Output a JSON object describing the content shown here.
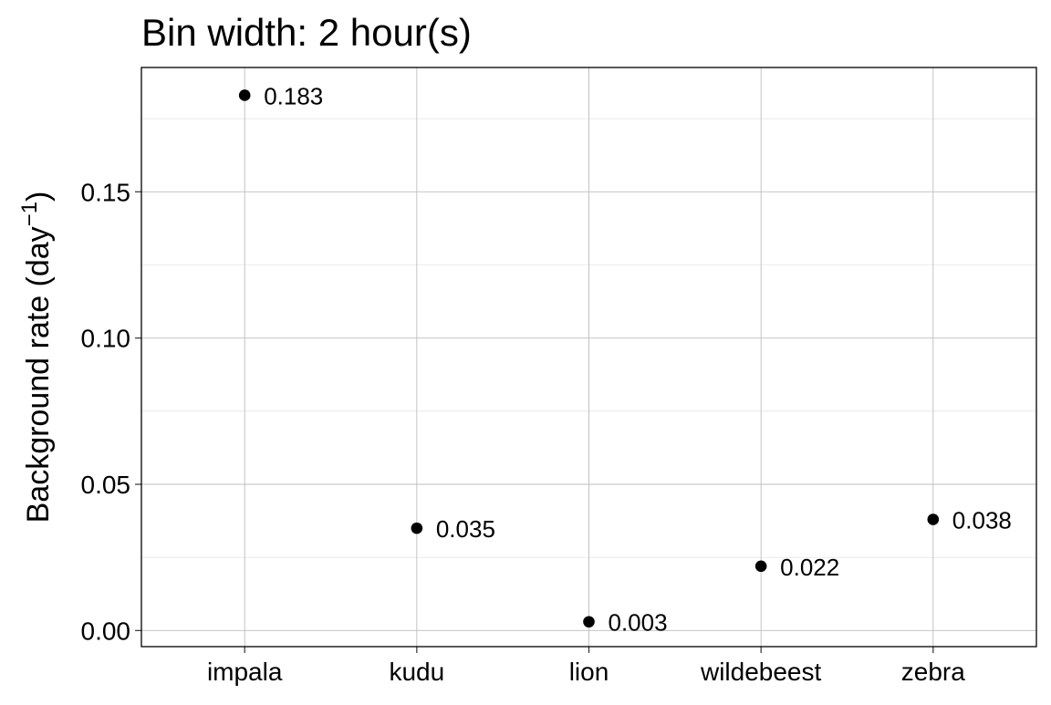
{
  "chart_data": {
    "type": "scatter",
    "title": "Bin width: 2 hour(s)",
    "ylabel": "Background rate (day",
    "ylabel_superscript": "−1",
    "ylabel_suffix": ")",
    "xlabel": "",
    "categories": [
      "impala",
      "kudu",
      "lion",
      "wildebeest",
      "zebra"
    ],
    "values": [
      0.183,
      0.035,
      0.003,
      0.022,
      0.038
    ],
    "labels": [
      "0.183",
      "0.035",
      "0.003",
      "0.022",
      "0.038"
    ],
    "ylim": [
      -0.0055,
      0.1925
    ],
    "yticks": [
      0.0,
      0.05,
      0.1,
      0.15
    ],
    "ytick_labels": [
      "0.00",
      "0.05",
      "0.10",
      "0.15"
    ],
    "grid": true,
    "legend": "none",
    "colors": {
      "point": "#000000",
      "panel_border": "#000000",
      "grid_major": "#bdbdbd",
      "grid_minor": "#e6e6e6",
      "background": "#ffffff"
    }
  }
}
